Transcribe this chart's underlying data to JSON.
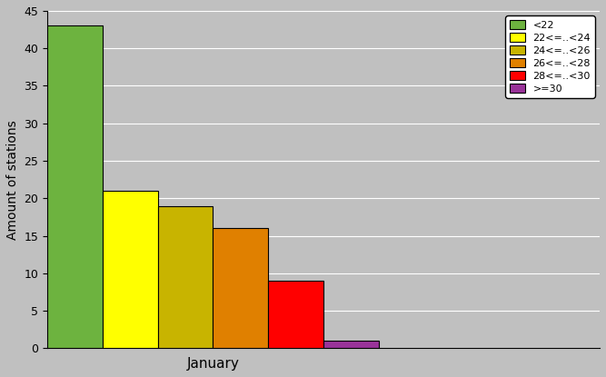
{
  "xlabel": "January",
  "ylabel": "Amount of stations",
  "categories": [
    "<22",
    "22<=..<24",
    "24<=..<26",
    "26<=..<28",
    "28<=..<30",
    ">=30"
  ],
  "values": [
    43,
    21,
    19,
    16,
    9,
    1
  ],
  "colors": [
    "#6db33f",
    "#ffff00",
    "#c8b400",
    "#e08000",
    "#ff0000",
    "#993399"
  ],
  "ylim": [
    0,
    45
  ],
  "yticks": [
    0,
    5,
    10,
    15,
    20,
    25,
    30,
    35,
    40,
    45
  ],
  "background_color": "#c0c0c0",
  "legend_labels": [
    "<22",
    "22<=..<24",
    "24<=..<26",
    "26<=..<28",
    "28<=..<30",
    ">=30"
  ],
  "bar_width": 1.0,
  "xlim": [
    -0.5,
    9.5
  ]
}
